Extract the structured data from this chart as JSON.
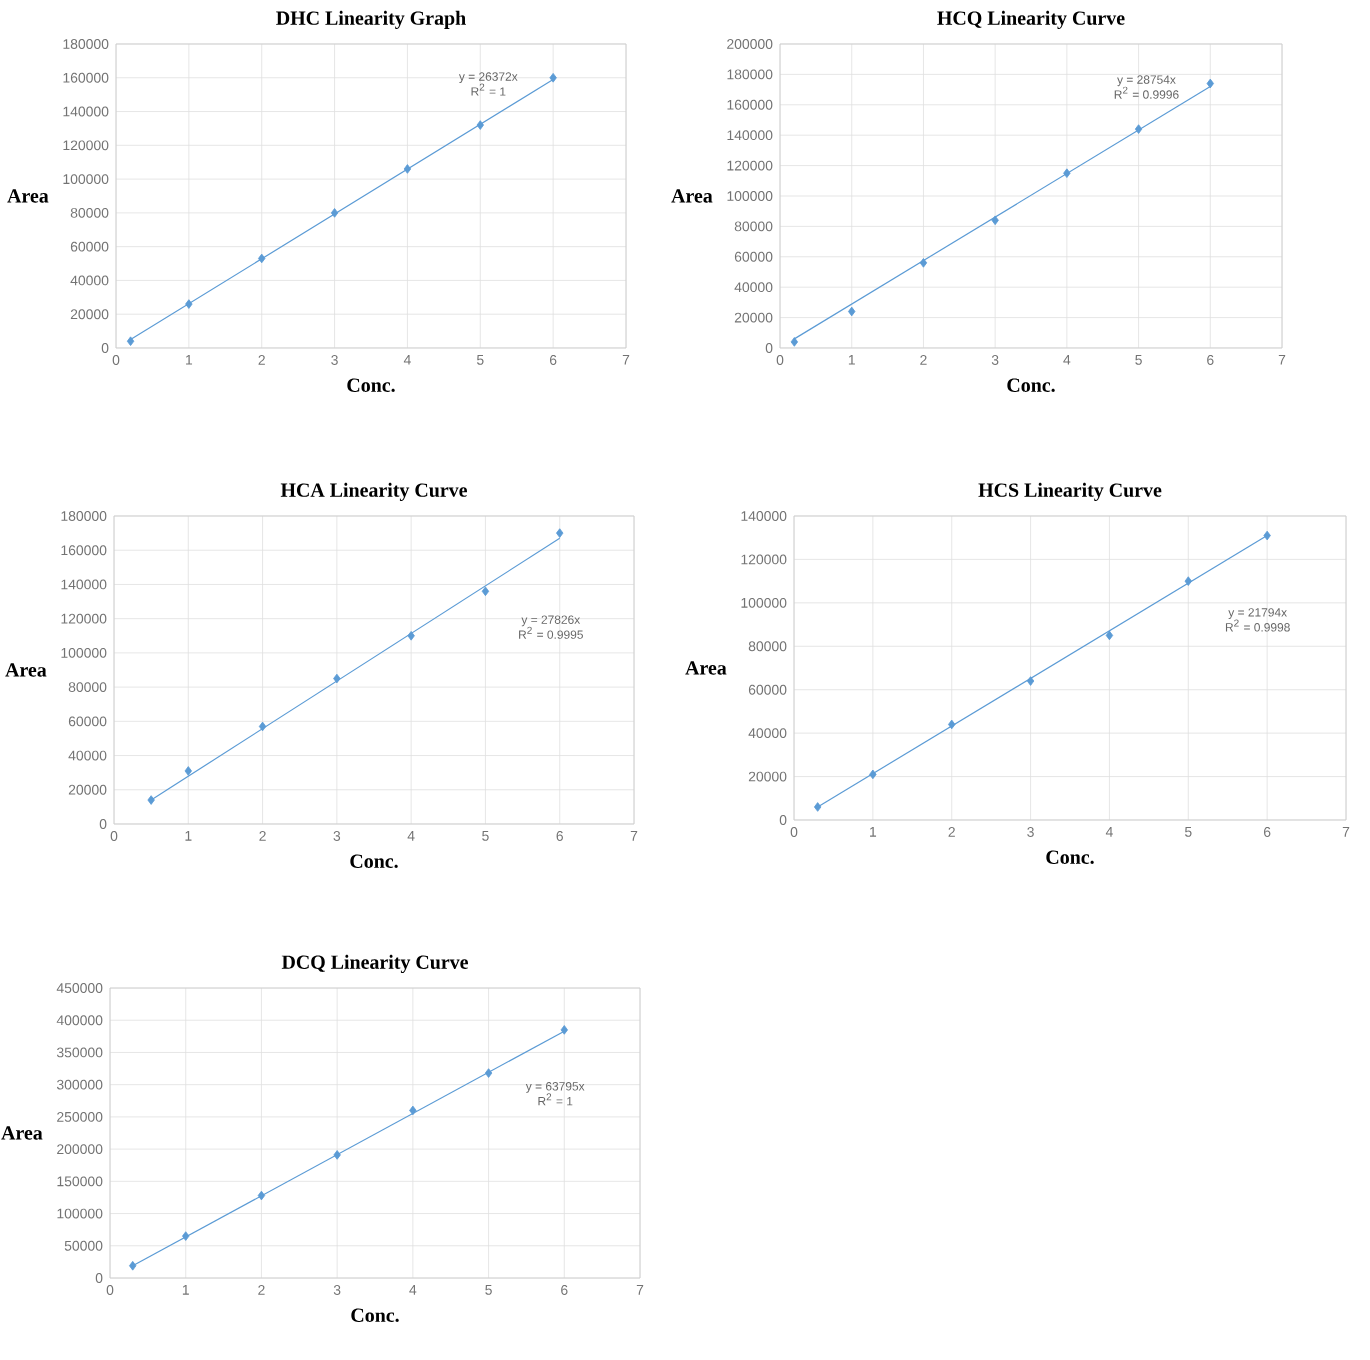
{
  "chart_data": [
    {
      "type": "scatter",
      "title": "DHC Linearity Graph",
      "xlabel": "Conc.",
      "ylabel": "Area",
      "xlim": [
        0,
        7
      ],
      "xticks": [
        0,
        1,
        2,
        3,
        4,
        5,
        6,
        7
      ],
      "ylim": [
        0,
        180000
      ],
      "yticks": [
        0,
        20000,
        40000,
        60000,
        80000,
        100000,
        120000,
        140000,
        160000,
        180000
      ],
      "grid": true,
      "marker": "diamond",
      "series": [
        {
          "color": "#5b9bd5",
          "x": [
            0.2,
            1,
            2,
            3,
            4,
            5,
            6
          ],
          "values": [
            4000,
            26000,
            53000,
            80000,
            106000,
            132000,
            160000
          ]
        },
        {
          "type": "line",
          "color": "#5b9bd5",
          "x": [
            0.2,
            6
          ],
          "values": [
            5000,
            159000
          ],
          "marker": "none",
          "line_style": "solid"
        }
      ],
      "annotations": [
        "y = 26372x",
        "R$^{2}$ = 1"
      ]
    },
    {
      "type": "scatter",
      "title": "HCQ Linearity Curve",
      "xlabel": "Conc.",
      "ylabel": "Area",
      "xlim": [
        0,
        7
      ],
      "xticks": [
        0,
        1,
        2,
        3,
        4,
        5,
        6,
        7
      ],
      "ylim": [
        0,
        200000
      ],
      "yticks": [
        0,
        20000,
        40000,
        60000,
        80000,
        100000,
        120000,
        140000,
        160000,
        180000,
        200000
      ],
      "grid": true,
      "marker": "diamond",
      "series": [
        {
          "color": "#5b9bd5",
          "x": [
            0.2,
            1,
            2,
            3,
            4,
            5,
            6
          ],
          "values": [
            4000,
            24000,
            56000,
            84000,
            115000,
            144000,
            174000
          ]
        },
        {
          "type": "line",
          "color": "#5b9bd5",
          "x": [
            0.2,
            6
          ],
          "values": [
            6000,
            172000
          ],
          "marker": "none",
          "line_style": "solid"
        }
      ],
      "annotations": [
        "y = 28754x",
        "R$^{2}$ = 0.9996"
      ]
    },
    {
      "type": "scatter",
      "title": "HCA Linearity Curve",
      "xlabel": "Conc.",
      "ylabel": "Area",
      "xlim": [
        0,
        7
      ],
      "xticks": [
        0,
        1,
        2,
        3,
        4,
        5,
        6,
        7
      ],
      "ylim": [
        0,
        180000
      ],
      "yticks": [
        0,
        20000,
        40000,
        60000,
        80000,
        100000,
        120000,
        140000,
        160000,
        180000
      ],
      "grid": true,
      "marker": "diamond",
      "series": [
        {
          "color": "#5b9bd5",
          "x": [
            0.5,
            1,
            2,
            3,
            4,
            5,
            6
          ],
          "values": [
            14000,
            31000,
            57000,
            85000,
            110000,
            136000,
            170000
          ]
        },
        {
          "type": "line",
          "color": "#5b9bd5",
          "x": [
            0.5,
            6
          ],
          "values": [
            14000,
            167000
          ],
          "marker": "none",
          "line_style": "solid"
        }
      ],
      "annotations": [
        "y = 27826x",
        "R$^{2}$ = 0.9995"
      ]
    },
    {
      "type": "scatter",
      "title": "HCS Linearity Curve",
      "xlabel": "Conc.",
      "ylabel": "Area",
      "xlim": [
        0,
        7
      ],
      "xticks": [
        0,
        1,
        2,
        3,
        4,
        5,
        6,
        7
      ],
      "ylim": [
        0,
        140000
      ],
      "yticks": [
        0,
        20000,
        40000,
        60000,
        80000,
        100000,
        120000,
        140000
      ],
      "grid": true,
      "marker": "diamond",
      "series": [
        {
          "color": "#5b9bd5",
          "x": [
            0.3,
            1,
            2,
            3,
            4,
            5,
            6
          ],
          "values": [
            6000,
            21000,
            44000,
            64000,
            85000,
            110000,
            131000
          ]
        },
        {
          "type": "line",
          "color": "#5b9bd5",
          "x": [
            0.3,
            6
          ],
          "values": [
            6000,
            131000
          ],
          "marker": "none",
          "line_style": "solid"
        }
      ],
      "annotations": [
        "y = 21794x",
        "R$^{2}$ = 0.9998"
      ]
    },
    {
      "type": "scatter",
      "title": "DCQ Linearity Curve",
      "xlabel": "Conc.",
      "ylabel": "Area",
      "xlim": [
        0,
        7
      ],
      "xticks": [
        0,
        1,
        2,
        3,
        4,
        5,
        6,
        7
      ],
      "ylim": [
        0,
        450000
      ],
      "yticks": [
        0,
        50000,
        100000,
        150000,
        200000,
        250000,
        300000,
        350000,
        400000,
        450000
      ],
      "grid": true,
      "marker": "diamond",
      "series": [
        {
          "color": "#5b9bd5",
          "x": [
            0.3,
            1,
            2,
            3,
            4,
            5,
            6
          ],
          "values": [
            19000,
            65000,
            128000,
            191000,
            260000,
            318000,
            385000
          ]
        },
        {
          "type": "line",
          "color": "#5b9bd5",
          "x": [
            0.3,
            6
          ],
          "values": [
            19000,
            383000
          ],
          "marker": "none",
          "line_style": "solid"
        }
      ],
      "annotations": [
        "y = 63795x",
        "R$^{2}$ = 1"
      ]
    }
  ]
}
